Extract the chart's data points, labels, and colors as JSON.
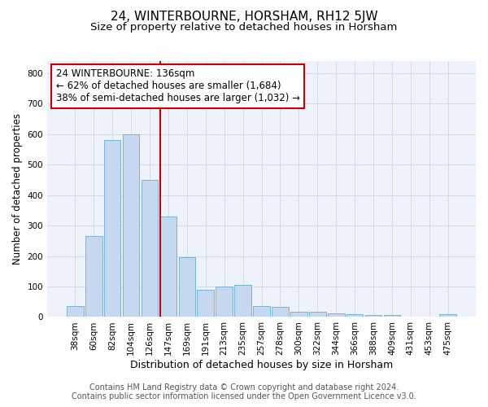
{
  "title": "24, WINTERBOURNE, HORSHAM, RH12 5JW",
  "subtitle": "Size of property relative to detached houses in Horsham",
  "xlabel": "Distribution of detached houses by size in Horsham",
  "ylabel": "Number of detached properties",
  "categories": [
    "38sqm",
    "60sqm",
    "82sqm",
    "104sqm",
    "126sqm",
    "147sqm",
    "169sqm",
    "191sqm",
    "213sqm",
    "235sqm",
    "257sqm",
    "278sqm",
    "300sqm",
    "322sqm",
    "344sqm",
    "366sqm",
    "388sqm",
    "409sqm",
    "431sqm",
    "453sqm",
    "475sqm"
  ],
  "values": [
    35,
    265,
    580,
    600,
    450,
    330,
    195,
    90,
    100,
    105,
    35,
    32,
    18,
    17,
    12,
    10,
    6,
    6,
    0,
    0,
    8
  ],
  "bar_color": "#c5d8f0",
  "bar_edge_color": "#6aaad4",
  "bar_width": 0.9,
  "vline_color": "#cc0000",
  "annotation_text": "24 WINTERBOURNE: 136sqm\n← 62% of detached houses are smaller (1,684)\n38% of semi-detached houses are larger (1,032) →",
  "annotation_box_color": "#cc0000",
  "ylim": [
    0,
    840
  ],
  "yticks": [
    0,
    100,
    200,
    300,
    400,
    500,
    600,
    700,
    800
  ],
  "grid_color": "#c8d0e0",
  "bg_color": "#eef2fb",
  "footer_line1": "Contains HM Land Registry data © Crown copyright and database right 2024.",
  "footer_line2": "Contains public sector information licensed under the Open Government Licence v3.0.",
  "title_fontsize": 11,
  "subtitle_fontsize": 9.5,
  "xlabel_fontsize": 9,
  "ylabel_fontsize": 8.5,
  "tick_fontsize": 7.5,
  "annotation_fontsize": 8.5,
  "footer_fontsize": 7
}
